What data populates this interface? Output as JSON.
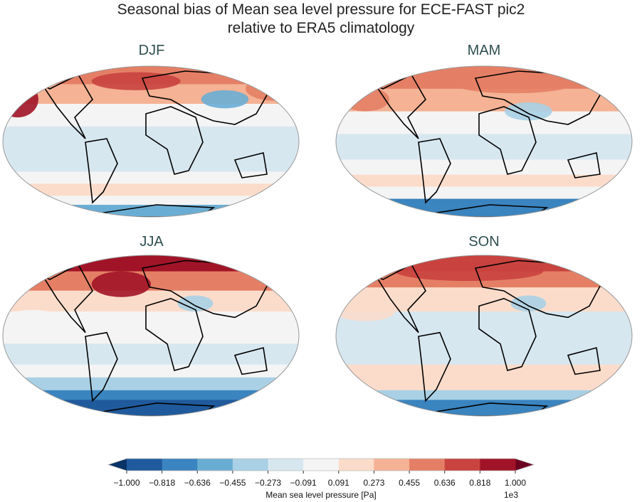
{
  "title_line1": "Seasonal bias of Mean sea level pressure for ECE-FAST pic2",
  "title_line2": "relative to ERA5 climatology",
  "panels": [
    {
      "season": "DJF"
    },
    {
      "season": "MAM"
    },
    {
      "season": "JJA"
    },
    {
      "season": "SON"
    }
  ],
  "colorbar": {
    "label": "Mean sea level pressure [Pa]",
    "multiplier": "1e3",
    "ticks": [
      "−1.000",
      "−0.818",
      "−0.636",
      "−0.455",
      "−0.273",
      "−0.091",
      "0.091",
      "0.273",
      "0.455",
      "0.636",
      "0.818",
      "1.000"
    ],
    "colors": [
      "#1f5a9c",
      "#3a84bf",
      "#6aadd4",
      "#a9d0e5",
      "#d7e7f0",
      "#f4f4f4",
      "#fbdccb",
      "#f5b294",
      "#e47f65",
      "#c9433f",
      "#a11427"
    ],
    "under_color": "#083366",
    "over_color": "#6b0020",
    "extend": "both"
  }
}
